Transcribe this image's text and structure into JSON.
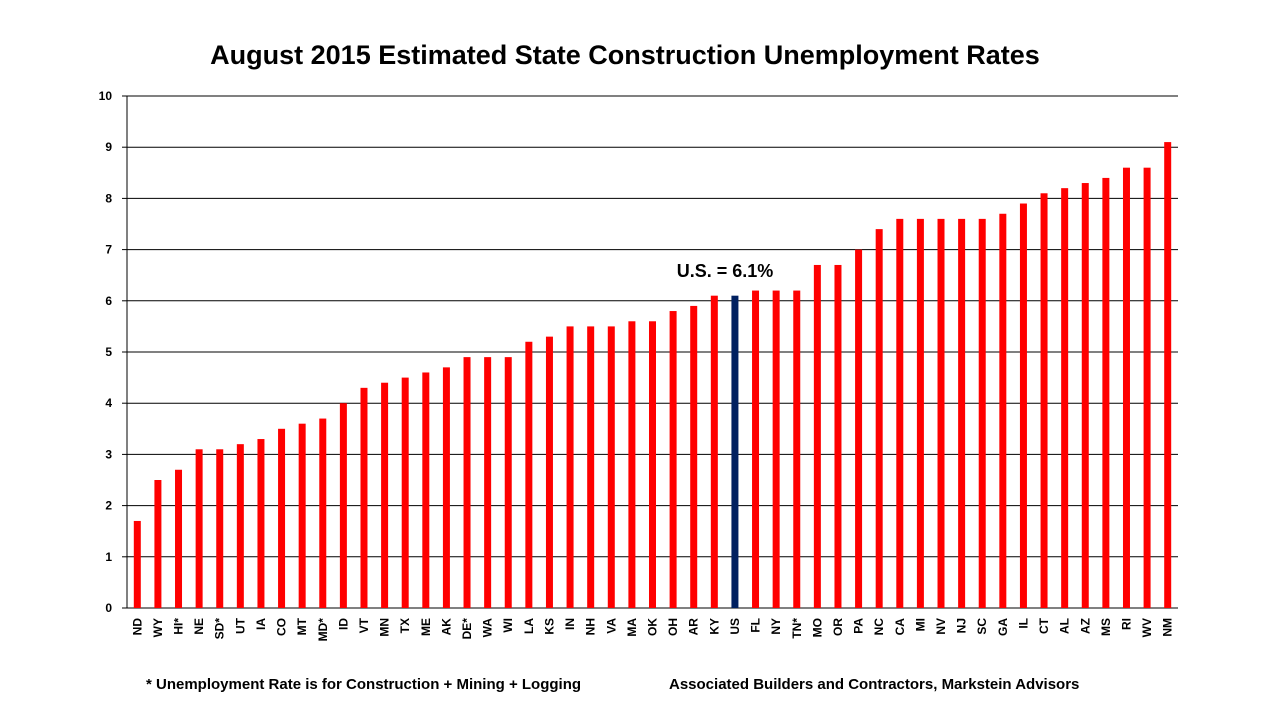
{
  "chart_data": {
    "type": "bar",
    "title": "August 2015 Estimated State Construction Unemployment Rates",
    "xlabel": "",
    "ylabel": "",
    "ylim": [
      0,
      10
    ],
    "yticks": [
      0,
      1,
      2,
      3,
      4,
      5,
      6,
      7,
      8,
      9,
      10
    ],
    "grid": true,
    "bar_color": "#ff0000",
    "highlight_color": "#002060",
    "highlight_category": "US",
    "annotation": "U.S. = 6.1%",
    "categories": [
      "ND",
      "WY",
      "HI*",
      "NE",
      "SD*",
      "UT",
      "IA",
      "CO",
      "MT",
      "MD*",
      "ID",
      "VT",
      "MN",
      "TX",
      "ME",
      "AK",
      "DE*",
      "WA",
      "WI",
      "LA",
      "KS",
      "IN",
      "NH",
      "VA",
      "MA",
      "OK",
      "OH",
      "AR",
      "KY",
      "US",
      "FL",
      "NY",
      "TN*",
      "MO",
      "OR",
      "PA",
      "NC",
      "CA",
      "MI",
      "NV",
      "NJ",
      "SC",
      "GA",
      "IL",
      "CT",
      "AL",
      "AZ",
      "MS",
      "RI",
      "WV",
      "NM"
    ],
    "values": [
      1.7,
      2.5,
      2.7,
      3.1,
      3.1,
      3.2,
      3.3,
      3.5,
      3.6,
      3.7,
      4.0,
      4.3,
      4.4,
      4.5,
      4.6,
      4.7,
      4.9,
      4.9,
      4.9,
      5.2,
      5.3,
      5.5,
      5.5,
      5.5,
      5.6,
      5.6,
      5.8,
      5.9,
      6.1,
      6.1,
      6.2,
      6.2,
      6.2,
      6.7,
      6.7,
      7.0,
      7.4,
      7.6,
      7.6,
      7.6,
      7.6,
      7.6,
      7.7,
      7.9,
      8.1,
      8.2,
      8.3,
      8.4,
      8.6,
      8.6,
      9.1
    ]
  },
  "footnotes": {
    "left": "* Unemployment Rate is for Construction + Mining + Logging",
    "right": "Associated Builders and Contractors, Markstein Advisors"
  }
}
